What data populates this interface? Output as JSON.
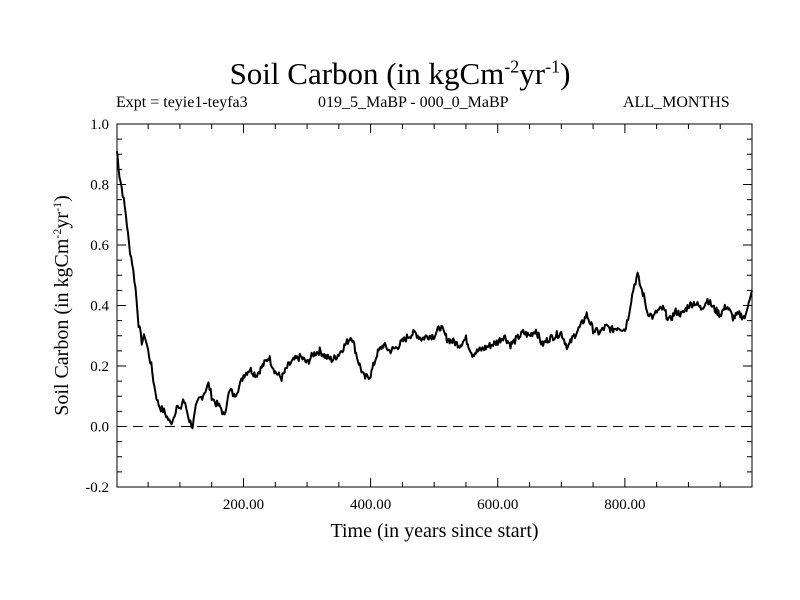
{
  "chart_data": {
    "type": "line",
    "title": "Soil Carbon (in kgCm",
    "title_sup1": "-2",
    "title_mid": "yr",
    "title_sup2": "-1",
    "title_end": ")",
    "subtitle_left": "Expt = teyie1-teyfa3",
    "subtitle_center": "019_5_MaBP - 000_0_MaBP",
    "subtitle_right": "ALL_MONTHS",
    "xlabel": "Time (in years since start)",
    "ylabel": "Soil Carbon (in kgCm-2yr-1)",
    "ylabel_main": "Soil Carbon (in kgCm",
    "ylabel_sup1": "-2",
    "ylabel_mid": "yr",
    "ylabel_sup2": "-1",
    "ylabel_end": ")",
    "xlim": [
      1,
      1000
    ],
    "ylim": [
      -0.2,
      1.0
    ],
    "x_ticks": [
      200,
      400,
      600,
      800
    ],
    "x_tick_labels": [
      "200.00",
      "400.00",
      "600.00",
      "800.00"
    ],
    "y_ticks": [
      -0.2,
      0.0,
      0.2,
      0.4,
      0.6,
      0.8,
      1.0
    ],
    "y_tick_labels": [
      "-0.2",
      "0.0",
      "0.2",
      "0.4",
      "0.6",
      "0.8",
      "1.0"
    ],
    "zero_line": 0.0,
    "series": [
      {
        "name": "soil carbon",
        "x": [
          1,
          5,
          10,
          15,
          20,
          25,
          30,
          35,
          40,
          45,
          50,
          55,
          60,
          65,
          70,
          75,
          80,
          85,
          90,
          95,
          100,
          105,
          110,
          115,
          120,
          125,
          130,
          135,
          140,
          145,
          150,
          155,
          160,
          165,
          170,
          175,
          180,
          185,
          190,
          195,
          200,
          210,
          220,
          230,
          240,
          250,
          260,
          270,
          280,
          290,
          300,
          310,
          320,
          330,
          340,
          350,
          360,
          370,
          380,
          390,
          400,
          410,
          420,
          430,
          440,
          450,
          460,
          470,
          480,
          490,
          500,
          510,
          520,
          530,
          540,
          550,
          560,
          570,
          580,
          590,
          600,
          610,
          620,
          630,
          640,
          650,
          660,
          670,
          680,
          690,
          700,
          710,
          720,
          730,
          740,
          750,
          760,
          770,
          780,
          790,
          800,
          805,
          810,
          815,
          820,
          825,
          830,
          835,
          840,
          845,
          850,
          860,
          870,
          880,
          890,
          900,
          910,
          920,
          930,
          940,
          950,
          960,
          970,
          980,
          990,
          995,
          1000
        ],
        "y": [
          0.91,
          0.83,
          0.77,
          0.7,
          0.6,
          0.54,
          0.46,
          0.34,
          0.28,
          0.3,
          0.25,
          0.2,
          0.13,
          0.08,
          0.06,
          0.05,
          0.03,
          0.01,
          0.03,
          0.07,
          0.05,
          0.09,
          0.06,
          0.02,
          0.0,
          0.06,
          0.09,
          0.1,
          0.12,
          0.14,
          0.1,
          0.08,
          0.07,
          0.06,
          0.03,
          0.1,
          0.12,
          0.1,
          0.12,
          0.14,
          0.17,
          0.19,
          0.17,
          0.2,
          0.23,
          0.18,
          0.16,
          0.2,
          0.22,
          0.23,
          0.21,
          0.24,
          0.25,
          0.23,
          0.22,
          0.24,
          0.27,
          0.3,
          0.22,
          0.16,
          0.17,
          0.24,
          0.27,
          0.25,
          0.26,
          0.28,
          0.3,
          0.31,
          0.29,
          0.3,
          0.3,
          0.33,
          0.29,
          0.28,
          0.27,
          0.29,
          0.24,
          0.25,
          0.26,
          0.27,
          0.28,
          0.3,
          0.27,
          0.29,
          0.31,
          0.3,
          0.32,
          0.27,
          0.29,
          0.3,
          0.31,
          0.26,
          0.3,
          0.33,
          0.37,
          0.32,
          0.31,
          0.33,
          0.32,
          0.33,
          0.32,
          0.36,
          0.42,
          0.47,
          0.5,
          0.46,
          0.43,
          0.38,
          0.37,
          0.36,
          0.38,
          0.39,
          0.35,
          0.38,
          0.37,
          0.4,
          0.41,
          0.39,
          0.42,
          0.39,
          0.37,
          0.4,
          0.36,
          0.37,
          0.36,
          0.42,
          0.45
        ]
      }
    ]
  }
}
